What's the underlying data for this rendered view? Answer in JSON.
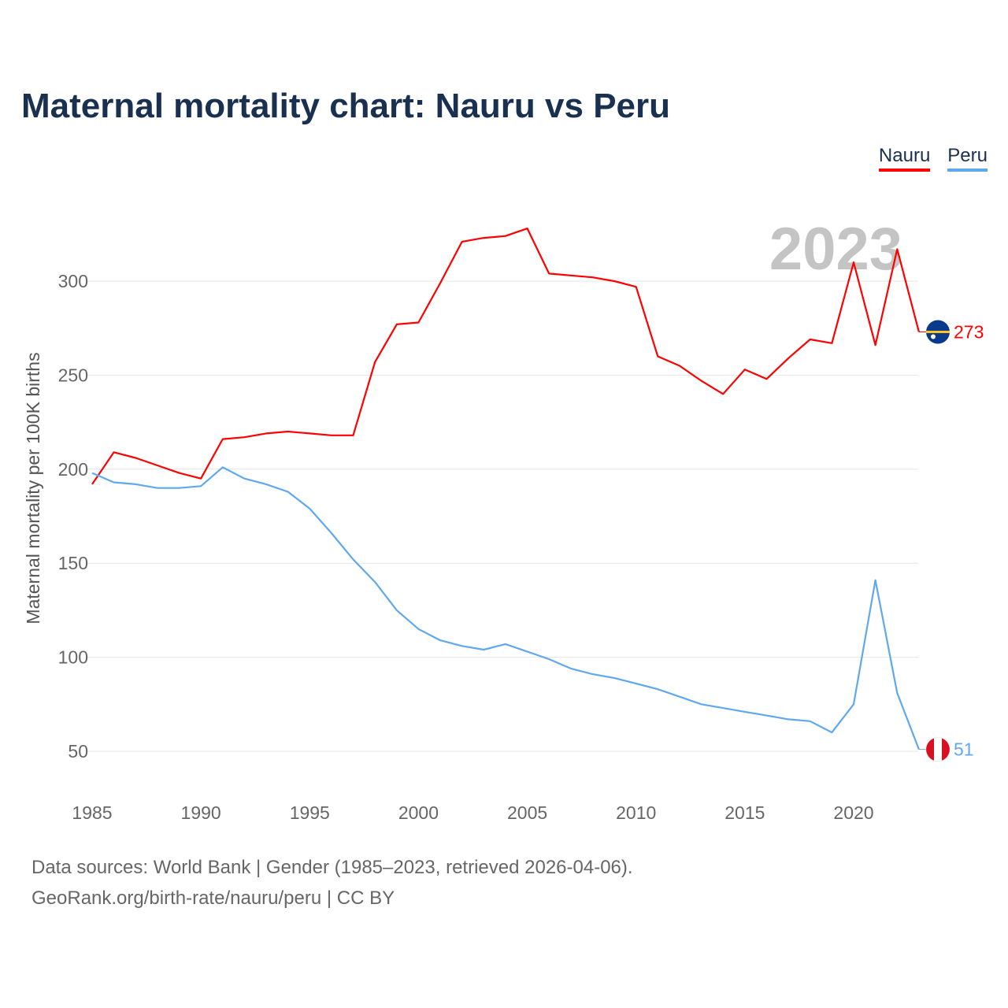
{
  "title": "Maternal mortality chart: Nauru vs Peru",
  "footer": {
    "line1": "Data sources: World Bank | Gender (1985–2023, retrieved 2026-04-06).",
    "line2": "GeoRank.org/birth-rate/nauru/peru | CC BY"
  },
  "chart_data": {
    "type": "line",
    "title": "Maternal mortality chart: Nauru vs Peru",
    "xlabel": "",
    "ylabel": "Maternal mortality per 100K births",
    "year_label": "2023",
    "x": [
      1985,
      1986,
      1987,
      1988,
      1989,
      1990,
      1991,
      1992,
      1993,
      1994,
      1995,
      1996,
      1997,
      1998,
      1999,
      2000,
      2001,
      2002,
      2003,
      2004,
      2005,
      2006,
      2007,
      2008,
      2009,
      2010,
      2011,
      2012,
      2013,
      2014,
      2015,
      2016,
      2017,
      2018,
      2019,
      2020,
      2021,
      2022,
      2023
    ],
    "xlim": [
      1985,
      2023
    ],
    "ylim": [
      36,
      340
    ],
    "xticks": [
      1985,
      1990,
      1995,
      2000,
      2005,
      2010,
      2015,
      2020
    ],
    "yticks": [
      50,
      100,
      150,
      200,
      250,
      300
    ],
    "grid": true,
    "legend_position": "top-right",
    "series": [
      {
        "name": "Nauru",
        "color": "#ff0000",
        "end_label": "273",
        "values": [
          192,
          209,
          206,
          202,
          198,
          195,
          216,
          217,
          219,
          220,
          219,
          218,
          218,
          257,
          277,
          278,
          299,
          321,
          323,
          324,
          328,
          304,
          303,
          302,
          300,
          297,
          260,
          255,
          247,
          240,
          253,
          248,
          259,
          269,
          267,
          310,
          266,
          317,
          273
        ]
      },
      {
        "name": "Peru",
        "color": "#5fa8ee",
        "end_label": "51",
        "values": [
          198,
          193,
          192,
          190,
          190,
          191,
          201,
          195,
          192,
          188,
          179,
          166,
          152,
          140,
          125,
          115,
          109,
          106,
          104,
          107,
          103,
          99,
          94,
          91,
          89,
          86,
          83,
          79,
          75,
          73,
          71,
          69,
          67,
          66,
          60,
          75,
          141,
          81,
          51
        ]
      }
    ]
  }
}
